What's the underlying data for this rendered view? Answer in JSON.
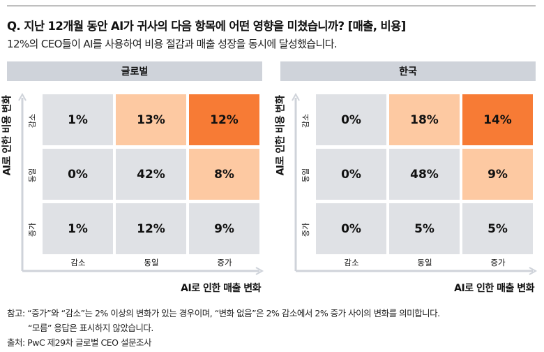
{
  "title": "Q. 지난 12개월 동안 AI가 귀사의 다음 항목에 어떤 영향을 미쳤습니까? [매출, 비용]",
  "subtitle": "12%의 CEO들이 AI를 사용하여 비용 절감과 매출 성장을 동시에 달성했습니다.",
  "colors": {
    "neutral": "#dfe1e5",
    "light": "#fdc9a2",
    "strong": "#f77b35",
    "header": "#cfd3da"
  },
  "chart_data": [
    {
      "type": "heatmap",
      "title": "글로벌",
      "xlabel": "AI로 인한 매출 변화",
      "ylabel": "AI로 인한 비용 변화",
      "x_categories": [
        "감소",
        "동일",
        "증가"
      ],
      "y_categories": [
        "감소",
        "동일",
        "증가"
      ],
      "values": [
        [
          "1%",
          "13%",
          "12%"
        ],
        [
          "0%",
          "42%",
          "8%"
        ],
        [
          "1%",
          "12%",
          "9%"
        ]
      ],
      "highlight": [
        [
          "neutral",
          "light",
          "strong"
        ],
        [
          "neutral",
          "neutral",
          "light"
        ],
        [
          "neutral",
          "neutral",
          "neutral"
        ]
      ]
    },
    {
      "type": "heatmap",
      "title": "한국",
      "xlabel": "AI로 인한 매출 변화",
      "ylabel": "AI로 인한 비용 변화",
      "x_categories": [
        "감소",
        "동일",
        "증가"
      ],
      "y_categories": [
        "감소",
        "동일",
        "증가"
      ],
      "values": [
        [
          "0%",
          "18%",
          "14%"
        ],
        [
          "0%",
          "48%",
          "9%"
        ],
        [
          "0%",
          "5%",
          "5%"
        ]
      ],
      "highlight": [
        [
          "neutral",
          "light",
          "strong"
        ],
        [
          "neutral",
          "neutral",
          "light"
        ],
        [
          "neutral",
          "neutral",
          "neutral"
        ]
      ]
    }
  ],
  "notes": {
    "line1": "참고: “증가”와 “감소”는 2% 이상의 변화가 있는 경우이며, “변화 없음”은 2% 감소에서 2% 증가 사이의 변화를 의미합니다.",
    "line2": "“모름” 응답은 표시하지 않았습니다.",
    "source": "출처: PwC 제29차 글로벌 CEO 설문조사"
  }
}
